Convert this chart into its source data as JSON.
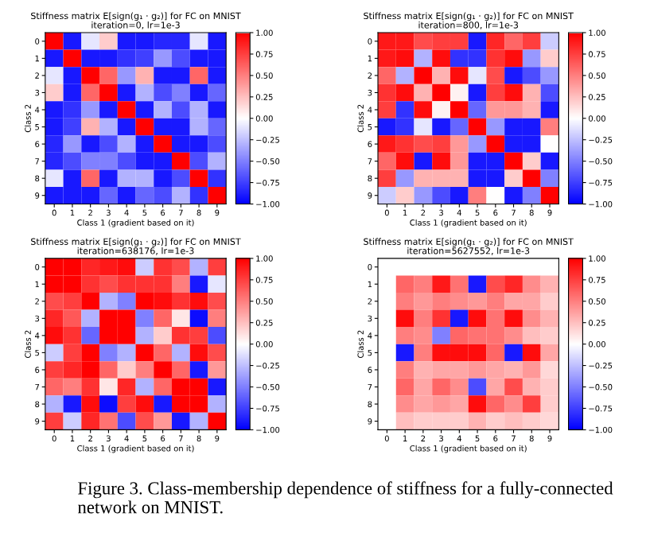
{
  "chart_data": [
    {
      "type": "heatmap",
      "title": "Stiffness matrix E[sign(g₁ · g₂)] for FC on MNIST",
      "subtitle": "iteration=0, lr=1e-3",
      "xlabel": "Class 1 (gradient based on it)",
      "ylabel": "Class 2",
      "categories": [
        "0",
        "1",
        "2",
        "3",
        "4",
        "5",
        "6",
        "7",
        "8",
        "9"
      ],
      "y_categories": [
        "0",
        "1",
        "2",
        "3",
        "4",
        "5",
        "6",
        "7",
        "8",
        "9"
      ],
      "clim": [
        -1,
        1
      ],
      "cticks": [
        {
          "value": 1,
          "label": "1.00"
        },
        {
          "value": 0.75,
          "label": "0.75"
        },
        {
          "value": 0.5,
          "label": "0.50"
        },
        {
          "value": 0.25,
          "label": "0.25"
        },
        {
          "value": 0,
          "label": "0.00"
        },
        {
          "value": -0.25,
          "label": "−0.25"
        },
        {
          "value": -0.5,
          "label": "−0.50"
        },
        {
          "value": -0.75,
          "label": "−0.75"
        },
        {
          "value": -1,
          "label": "−1.00"
        }
      ],
      "cells": [
        [
          1,
          -0.9,
          -0.1,
          0.2,
          -0.9,
          -0.9,
          -0.85,
          -0.85,
          -0.1,
          -0.9
        ],
        [
          -0.9,
          1,
          -0.9,
          -0.9,
          -0.8,
          -0.75,
          -0.4,
          -0.7,
          -0.9,
          -0.9
        ],
        [
          -0.1,
          -0.9,
          1,
          0.6,
          -0.4,
          0.3,
          -0.9,
          -0.9,
          0.6,
          -0.9
        ],
        [
          0.2,
          -0.9,
          0.6,
          1,
          -0.9,
          -0.3,
          -0.7,
          -0.5,
          -0.9,
          -0.6
        ],
        [
          -0.9,
          -0.8,
          -0.4,
          -0.9,
          1,
          -0.9,
          -0.3,
          -0.7,
          -0.3,
          -0.9
        ],
        [
          -0.9,
          -0.75,
          0.3,
          -0.3,
          -0.9,
          1,
          -0.9,
          -0.9,
          -0.3,
          -0.6
        ],
        [
          -0.85,
          -0.4,
          -0.9,
          -0.7,
          -0.3,
          -0.9,
          1,
          -0.9,
          -0.9,
          -0.7
        ],
        [
          -0.85,
          -0.7,
          -0.5,
          -0.5,
          -0.7,
          -0.9,
          -0.9,
          1,
          -0.7,
          -0.3
        ],
        [
          -0.1,
          -0.9,
          0.6,
          -0.9,
          -0.3,
          -0.3,
          -0.9,
          -0.7,
          1,
          -0.8
        ],
        [
          -0.9,
          -0.9,
          -0.9,
          -0.6,
          -0.9,
          -0.6,
          -0.7,
          -0.3,
          -0.8,
          1
        ]
      ]
    },
    {
      "type": "heatmap",
      "title": "Stiffness matrix E[sign(g₁ · g₂)] for FC on MNIST",
      "subtitle": "iteration=800, lr=1e-3",
      "xlabel": "Class 1 (gradient based on it)",
      "ylabel": "Class 2",
      "categories": [
        "0",
        "1",
        "2",
        "3",
        "4",
        "5",
        "6",
        "7",
        "8",
        "9"
      ],
      "y_categories": [
        "0",
        "1",
        "2",
        "3",
        "4",
        "5",
        "6",
        "7",
        "8",
        "9"
      ],
      "clim": [
        -1,
        1
      ],
      "cticks": [
        {
          "value": 1,
          "label": "1.00"
        },
        {
          "value": 0.75,
          "label": "0.75"
        },
        {
          "value": 0.5,
          "label": "0.50"
        },
        {
          "value": 0.25,
          "label": "0.25"
        },
        {
          "value": 0,
          "label": "0.00"
        },
        {
          "value": -0.25,
          "label": "−0.25"
        },
        {
          "value": -0.5,
          "label": "−0.50"
        },
        {
          "value": -0.75,
          "label": "−0.75"
        },
        {
          "value": -1,
          "label": "−1.00"
        }
      ],
      "cells": [
        [
          0.9,
          0.9,
          0.7,
          0.75,
          0.75,
          -0.9,
          0.85,
          0.6,
          0.75,
          -0.2
        ],
        [
          0.9,
          0.95,
          -0.3,
          0.95,
          -0.8,
          -0.8,
          0.8,
          0.95,
          -0.4,
          0.2
        ],
        [
          0.6,
          -0.3,
          1,
          0.3,
          0.95,
          -0.1,
          0.7,
          -0.9,
          -0.7,
          -0.4
        ],
        [
          0.8,
          0.95,
          0.3,
          1,
          0.05,
          -0.9,
          0.75,
          0.95,
          0.3,
          -0.7
        ],
        [
          0.75,
          -0.8,
          0.95,
          0.05,
          1,
          -0.6,
          0.4,
          0.4,
          0.3,
          -0.9
        ],
        [
          -0.9,
          -0.8,
          -0.1,
          -0.9,
          -0.6,
          1,
          -0.4,
          -0.9,
          -0.9,
          0.5
        ],
        [
          0.9,
          0.8,
          0.7,
          0.75,
          0.4,
          -0.4,
          1,
          -0.9,
          -0.9,
          0
        ],
        [
          0.6,
          0.95,
          -0.9,
          0.95,
          0.4,
          -0.9,
          -0.9,
          1,
          0.2,
          -0.9
        ],
        [
          0.75,
          -0.4,
          0.3,
          0.3,
          0.3,
          -0.9,
          -0.9,
          0.2,
          1,
          -0.5
        ],
        [
          -0.2,
          0.2,
          -0.4,
          -0.7,
          -0.9,
          0.5,
          0,
          -0.9,
          -0.5,
          1
        ]
      ]
    },
    {
      "type": "heatmap",
      "title": "Stiffness matrix E[sign(g₁ · g₂)] for FC on MNIST",
      "subtitle": "iteration=638176, lr=1e-3",
      "xlabel": "Class 1 (gradient based on it)",
      "ylabel": "Class 2",
      "categories": [
        "0",
        "1",
        "2",
        "3",
        "4",
        "5",
        "6",
        "7",
        "8",
        "9"
      ],
      "y_categories": [
        "0",
        "1",
        "2",
        "3",
        "4",
        "5",
        "6",
        "7",
        "8",
        "9"
      ],
      "clim": [
        -1,
        1
      ],
      "cticks": [
        {
          "value": 1,
          "label": "1.00"
        },
        {
          "value": 0.75,
          "label": "0.75"
        },
        {
          "value": 0.5,
          "label": "0.50"
        },
        {
          "value": 0.25,
          "label": "0.25"
        },
        {
          "value": 0,
          "label": "0.00"
        },
        {
          "value": -0.25,
          "label": "−0.25"
        },
        {
          "value": -0.5,
          "label": "−0.50"
        },
        {
          "value": -0.75,
          "label": "−0.75"
        },
        {
          "value": -1,
          "label": "−1.00"
        }
      ],
      "cells": [
        [
          1,
          1,
          0.85,
          0.9,
          0.95,
          -0.2,
          0.8,
          0.7,
          -0.3,
          0.75
        ],
        [
          1,
          1,
          0.8,
          0.7,
          0.8,
          0.8,
          0.8,
          0.5,
          -0.9,
          -0.1
        ],
        [
          0.7,
          0.75,
          1,
          -0.3,
          -0.5,
          1,
          0.95,
          0.8,
          0.95,
          0.7
        ],
        [
          0.85,
          0.65,
          -0.3,
          1,
          1,
          -0.5,
          0.6,
          0.1,
          -0.95,
          0.5
        ],
        [
          0.95,
          0.8,
          -0.6,
          1,
          1,
          -0.3,
          0.2,
          0.8,
          0.75,
          -0.7
        ],
        [
          -0.2,
          0.75,
          1,
          -0.5,
          -0.3,
          1,
          0.6,
          -0.3,
          0.95,
          0.7
        ],
        [
          0.75,
          0.85,
          1,
          0.6,
          0.2,
          0.5,
          1,
          0.6,
          -0.9,
          0.4
        ],
        [
          0.6,
          0.5,
          0.8,
          0.1,
          0.85,
          -0.3,
          0.6,
          1,
          1,
          -0.9
        ],
        [
          -0.3,
          -0.9,
          0.95,
          -0.95,
          0.75,
          0.95,
          -0.9,
          1,
          1,
          -0.3
        ],
        [
          0.75,
          -0.2,
          0.85,
          0.55,
          -0.7,
          0.7,
          0.4,
          -0.9,
          -0.3,
          1
        ]
      ]
    },
    {
      "type": "heatmap",
      "title": "Stiffness matrix E[sign(g₁ · g₂)] for FC on MNIST",
      "subtitle": "iteration=5627552, lr=1e-3",
      "xlabel": "Class 1 (gradient based on it)",
      "ylabel": "Class 2",
      "categories": [
        "0",
        "1",
        "2",
        "3",
        "4",
        "5",
        "6",
        "7",
        "8",
        "9"
      ],
      "y_categories": [
        "0",
        "1",
        "2",
        "3",
        "4",
        "5",
        "6",
        "7",
        "8",
        "9"
      ],
      "clim": [
        -1,
        1
      ],
      "cticks": [
        {
          "value": 1,
          "label": "1.00"
        },
        {
          "value": 0.75,
          "label": "0.75"
        },
        {
          "value": 0.5,
          "label": "0.50"
        },
        {
          "value": 0.25,
          "label": "0.25"
        },
        {
          "value": 0,
          "label": "0.00"
        },
        {
          "value": -0.25,
          "label": "−0.25"
        },
        {
          "value": -0.5,
          "label": "−0.50"
        },
        {
          "value": -0.75,
          "label": "−0.75"
        },
        {
          "value": -1,
          "label": "−1.00"
        }
      ],
      "annotations": [
        "Figure 3. Class-membership dependence of stiffness for a fully-connected network on MNIST."
      ],
      "cells": [
        [
          null,
          null,
          null,
          null,
          null,
          null,
          null,
          null,
          null,
          null
        ],
        [
          null,
          0.6,
          0.5,
          0.9,
          0.55,
          -0.9,
          0.7,
          0.85,
          0.45,
          0.3
        ],
        [
          null,
          0.5,
          0.4,
          0.5,
          0.45,
          0.4,
          0.5,
          0.35,
          0.35,
          0.2
        ],
        [
          null,
          0.95,
          0.5,
          0.8,
          -0.9,
          0.95,
          0.55,
          0.95,
          0.45,
          0.3
        ],
        [
          null,
          0.5,
          0.45,
          -0.5,
          0.6,
          0.55,
          0.55,
          0.45,
          0.25,
          0.2
        ],
        [
          null,
          -0.9,
          0.5,
          0.95,
          0.95,
          0.95,
          0.6,
          -0.9,
          0.95,
          0.35
        ],
        [
          null,
          0.5,
          0.3,
          0.35,
          0.35,
          0.4,
          0.35,
          0.3,
          0.4,
          0.15
        ],
        [
          null,
          0.6,
          0.35,
          0.6,
          0.45,
          -0.7,
          0.35,
          0.7,
          0.3,
          0.2
        ],
        [
          null,
          0.45,
          0.35,
          0.4,
          0.35,
          0.95,
          0.6,
          0.45,
          0.75,
          0.2
        ],
        [
          null,
          0.25,
          0.2,
          0.2,
          0.2,
          0.3,
          0.2,
          0.25,
          0.2,
          0.15
        ]
      ]
    }
  ]
}
